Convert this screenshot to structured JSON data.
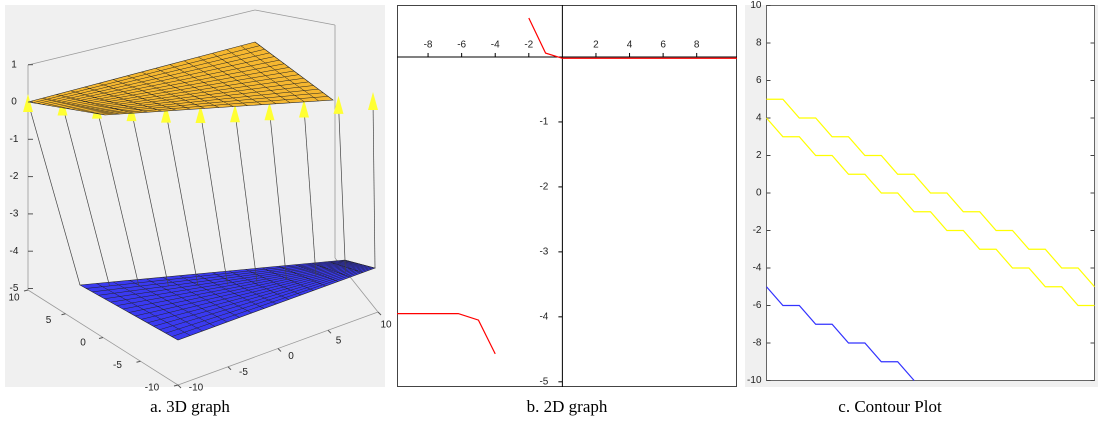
{
  "chart_data": [
    {
      "type": "surface",
      "caption": "a. 3D graph",
      "xticks": [
        -10,
        -5,
        0,
        5,
        10
      ],
      "yticks": [
        -10,
        -5,
        0,
        5,
        10
      ],
      "zticks": [
        -5,
        -4,
        -3,
        -2,
        -1,
        0,
        1
      ]
    },
    {
      "type": "line",
      "caption": "b. 2D graph",
      "xlim": [
        -9.85,
        10.4
      ],
      "ylim": [
        -5.08,
        0.8
      ],
      "xticks": [
        -8,
        -6,
        -4,
        -2,
        2,
        4,
        6,
        8
      ],
      "yticks": [
        -5,
        -4,
        -3,
        -2,
        -1
      ],
      "x": [
        -9.85,
        -6.2,
        -5,
        -4,
        -3,
        -2,
        -1,
        0,
        10.4
      ],
      "series": [
        {
          "color": "#ff0000",
          "values": [
            -3.95,
            -3.95,
            -4.05,
            -4.57,
            null,
            0.6,
            0.06,
            -0.02,
            -0.02
          ]
        }
      ]
    },
    {
      "type": "contour",
      "caption": "c. Contour Plot",
      "xlim": [
        -10,
        10
      ],
      "ylim": [
        -10,
        10
      ],
      "yticks": [
        -10,
        -8,
        -6,
        -4,
        -2,
        0,
        2,
        4,
        6,
        8,
        10
      ],
      "series": [
        {
          "color": "#ffff00",
          "x": [
            -10,
            -9,
            -8,
            -7,
            -6,
            -5,
            -4,
            -3,
            -2,
            -1,
            0,
            1,
            2,
            3,
            4,
            5,
            6,
            7,
            8,
            9,
            10
          ],
          "y": [
            5,
            5,
            4,
            4,
            3,
            3,
            2,
            2,
            1,
            1,
            0,
            0,
            -1,
            -1,
            -2,
            -2,
            -3,
            -3,
            -4,
            -4,
            -5
          ]
        },
        {
          "color": "#ffff00",
          "x": [
            -10,
            -9,
            -8,
            -7,
            -6,
            -5,
            -4,
            -3,
            -2,
            -1,
            0,
            1,
            2,
            3,
            4,
            5,
            6,
            7,
            8,
            9,
            10
          ],
          "y": [
            4,
            3,
            3,
            2,
            2,
            1,
            1,
            0,
            0,
            -1,
            -1,
            -2,
            -2,
            -3,
            -3,
            -4,
            -4,
            -5,
            -5,
            -6,
            -6
          ]
        },
        {
          "color": "#3333ff",
          "x": [
            -10,
            -9,
            -8,
            -7,
            -6,
            -5,
            -4,
            -3,
            -2,
            -1
          ],
          "y": [
            -5,
            -6,
            -6,
            -7,
            -7,
            -8,
            -8,
            -9,
            -9,
            -10
          ]
        }
      ]
    }
  ]
}
